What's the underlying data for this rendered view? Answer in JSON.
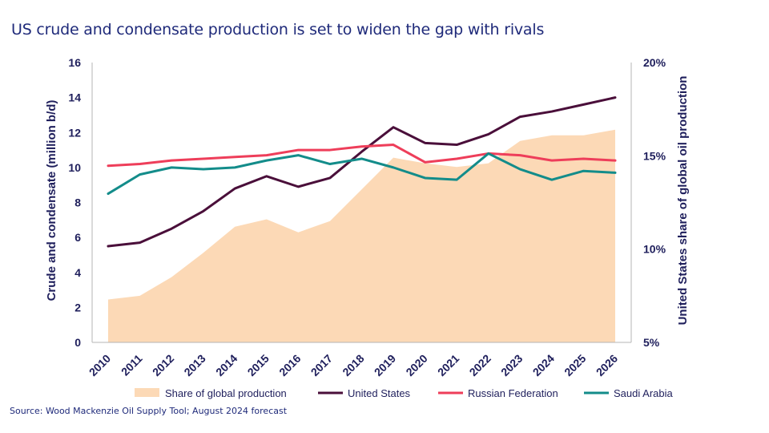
{
  "title": "US crude and condensate production is set to widen the gap with rivals",
  "source": "Source: Wood Mackenzie Oil Supply Tool; August 2024 forecast",
  "chart_data": {
    "type": "line",
    "x": [
      "2010",
      "2011",
      "2012",
      "2013",
      "2014",
      "2015",
      "2016",
      "2017",
      "2018",
      "2019",
      "2020",
      "2021",
      "2022",
      "2023",
      "2024",
      "2025",
      "2026"
    ],
    "ylabel": "Crude and condensate (million b/d)",
    "y2label": "United States share of global oil production",
    "ylim": [
      0,
      16
    ],
    "y2lim": [
      5,
      20
    ],
    "yticks": [
      "0",
      "2",
      "4",
      "6",
      "8",
      "10",
      "12",
      "14",
      "16"
    ],
    "y2ticks": [
      "5%",
      "10%",
      "15%",
      "20%"
    ],
    "legend_position": "bottom",
    "area": {
      "name": "Share of global production",
      "color": "#fcd9b6",
      "axis": "right",
      "values": [
        7.3,
        7.5,
        8.5,
        9.8,
        11.2,
        11.6,
        10.9,
        11.5,
        13.2,
        14.9,
        14.6,
        14.4,
        14.6,
        15.8,
        16.1,
        16.1,
        16.4
      ]
    },
    "series": [
      {
        "name": "United States",
        "color": "#4a0f3a",
        "axis": "left",
        "values": [
          5.5,
          5.7,
          6.5,
          7.5,
          8.8,
          9.5,
          8.9,
          9.4,
          10.9,
          12.3,
          11.4,
          11.3,
          11.9,
          12.9,
          13.2,
          13.6,
          14.0
        ]
      },
      {
        "name": "Russian Federation",
        "color": "#ee3e5a",
        "axis": "left",
        "values": [
          10.1,
          10.2,
          10.4,
          10.5,
          10.6,
          10.7,
          11.0,
          11.0,
          11.2,
          11.3,
          10.3,
          10.5,
          10.8,
          10.7,
          10.4,
          10.5,
          10.4
        ]
      },
      {
        "name": "Saudi Arabia",
        "color": "#138c8a",
        "axis": "left",
        "values": [
          8.5,
          9.6,
          10.0,
          9.9,
          10.0,
          10.4,
          10.7,
          10.2,
          10.5,
          10.0,
          9.4,
          9.3,
          10.8,
          9.9,
          9.3,
          9.8,
          9.7
        ]
      }
    ]
  }
}
